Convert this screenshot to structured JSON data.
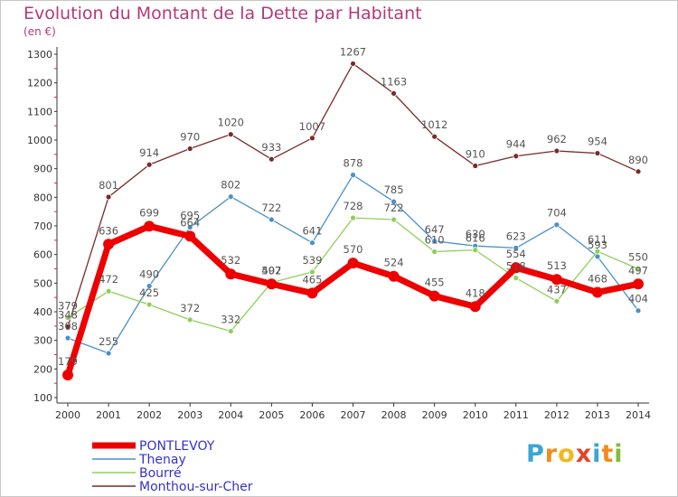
{
  "title": "Evolution du Montant de la Dette par Habitant",
  "subtitle": "(en €)",
  "logo": {
    "text": "Proxiti",
    "letters": [
      "P",
      "r",
      "o",
      "x",
      "i",
      "t",
      "i"
    ],
    "colors": [
      "#3aa6d8",
      "#f28b1e",
      "#f2b81e",
      "#e0462b",
      "#3aa6d8",
      "#f28b1e",
      "#7fbf3a"
    ]
  },
  "chart_data": {
    "type": "line",
    "categories": [
      "2000",
      "2001",
      "2002",
      "2003",
      "2004",
      "2005",
      "2006",
      "2007",
      "2008",
      "2009",
      "2010",
      "2011",
      "2012",
      "2013",
      "2014"
    ],
    "ylim": [
      100,
      1300
    ],
    "yticks": [
      100,
      200,
      300,
      400,
      500,
      600,
      700,
      800,
      900,
      1000,
      1100,
      1200,
      1300
    ],
    "grid": false,
    "legend_position": "bottom-left",
    "series": [
      {
        "name": "Monthou-sur-Cher",
        "color": "#7a2a2a",
        "width": 1.3,
        "values": [
          348,
          801,
          914,
          970,
          1020,
          933,
          1007,
          1267,
          1163,
          1012,
          910,
          944,
          962,
          954,
          890
        ],
        "labels": [
          "348",
          "801",
          "914",
          "970",
          "1020",
          "933",
          "1007",
          "1267",
          "1163",
          "1012",
          "910",
          "944",
          "962",
          "954",
          "890"
        ]
      },
      {
        "name": "Thenay",
        "color": "#4a90c8",
        "width": 1.3,
        "values": [
          308,
          255,
          490,
          695,
          802,
          722,
          641,
          878,
          785,
          647,
          630,
          623,
          704,
          593,
          404
        ],
        "labels": [
          "308",
          "255",
          "490",
          "695",
          "802",
          "722",
          "641",
          "878",
          "785",
          "647",
          "630",
          "623",
          "704",
          "593",
          "404"
        ]
      },
      {
        "name": "Bourré",
        "color": "#8ed05a",
        "width": 1.3,
        "values": [
          379,
          472,
          425,
          372,
          332,
          502,
          539,
          728,
          722,
          610,
          616,
          518,
          437,
          611,
          550
        ],
        "labels": [
          "379",
          "472",
          "425",
          "372",
          "332",
          "502",
          "539",
          "728",
          "722",
          "610",
          "616",
          "518",
          "437",
          "611",
          "550"
        ]
      },
      {
        "name": "PONTLEVOY",
        "color": "#ee0000",
        "width": 7,
        "values": [
          179,
          636,
          699,
          664,
          532,
          497,
          465,
          570,
          524,
          455,
          418,
          554,
          513,
          468,
          497
        ],
        "labels": [
          "179",
          "636",
          "699",
          "664",
          "532",
          "497",
          "465",
          "570",
          "524",
          "455",
          "418",
          "554",
          "513",
          "468",
          "497"
        ]
      }
    ],
    "legend": [
      {
        "name": "PONTLEVOY",
        "color": "#ee0000",
        "text_color": "#3333cc",
        "width": 7
      },
      {
        "name": "Thenay",
        "color": "#4a90c8",
        "text_color": "#3333cc",
        "width": 1.5
      },
      {
        "name": "Bourré",
        "color": "#8ed05a",
        "text_color": "#3333cc",
        "width": 1.5
      },
      {
        "name": "Monthou-sur-Cher",
        "color": "#7a2a2a",
        "text_color": "#3333cc",
        "width": 1.5
      }
    ]
  }
}
